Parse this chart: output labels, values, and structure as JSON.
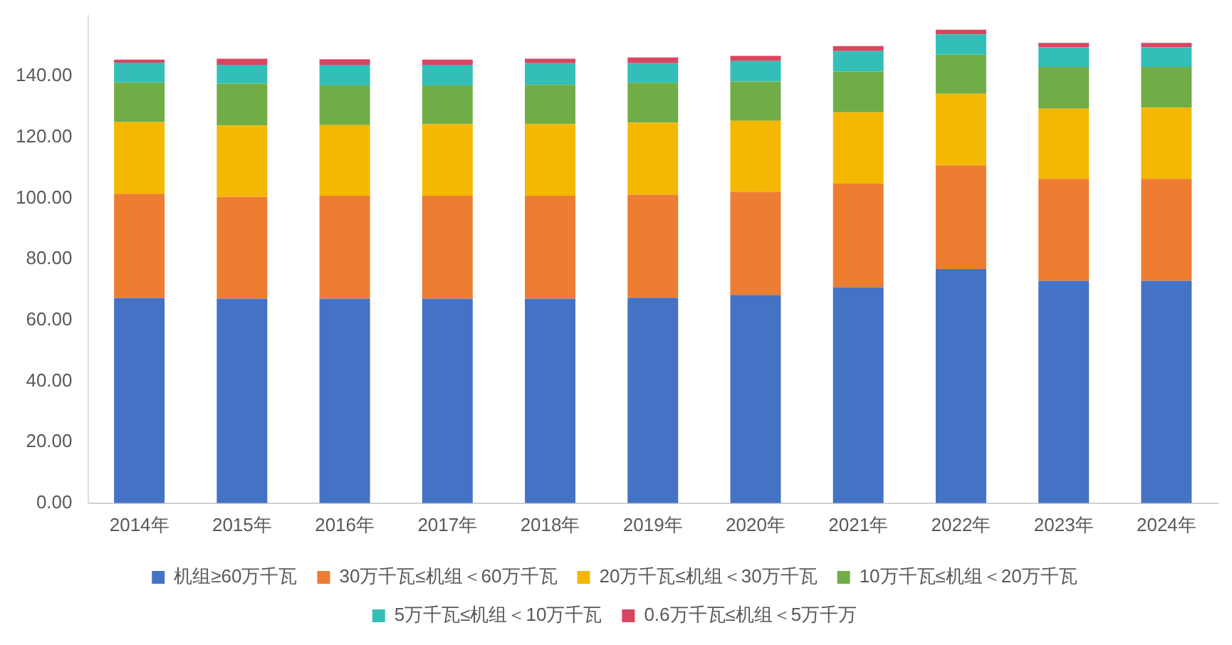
{
  "chart_data": {
    "type": "bar",
    "stacked": true,
    "categories": [
      "2014年",
      "2015年",
      "2016年",
      "2017年",
      "2018年",
      "2019年",
      "2020年",
      "2021年",
      "2022年",
      "2023年",
      "2024年"
    ],
    "series": [
      {
        "name": "机组≥60万千瓦",
        "color": "#4472c4",
        "values": [
          67.3,
          67.1,
          67.1,
          67.1,
          67.1,
          67.4,
          68.3,
          70.8,
          76.8,
          72.9,
          72.9
        ]
      },
      {
        "name": "30万千瓦≤机组＜60万千瓦",
        "color": "#ed7d31",
        "values": [
          34.2,
          33.4,
          33.7,
          33.7,
          33.7,
          33.8,
          33.8,
          34.0,
          34.0,
          33.5,
          33.5
        ]
      },
      {
        "name": "20万千瓦≤机组＜30万千瓦",
        "color": "#f5b800",
        "values": [
          23.5,
          23.4,
          23.2,
          23.5,
          23.5,
          23.6,
          23.3,
          23.4,
          23.5,
          23.0,
          23.3
        ]
      },
      {
        "name": "10万千瓦≤机组＜20万千瓦",
        "color": "#70ad47",
        "values": [
          13.0,
          13.7,
          13.0,
          12.7,
          12.9,
          13.1,
          12.9,
          13.4,
          12.8,
          13.7,
          13.4
        ]
      },
      {
        "name": "5万千瓦≤机组＜10万千瓦",
        "color": "#33bfb8",
        "values": [
          6.5,
          6.2,
          6.8,
          6.8,
          7.1,
          6.4,
          6.7,
          6.7,
          6.7,
          6.4,
          6.4
        ]
      },
      {
        "name": "0.6万千瓦≤机组＜5万千万",
        "color": "#d9455f",
        "values": [
          1.0,
          2.0,
          1.8,
          1.7,
          1.5,
          1.9,
          1.7,
          1.6,
          1.5,
          1.5,
          1.5
        ]
      }
    ],
    "ylim": [
      0,
      160
    ],
    "yticks": [
      {
        "value": 0,
        "label": "0.00"
      },
      {
        "value": 20,
        "label": "20.00"
      },
      {
        "value": 40,
        "label": "40.00"
      },
      {
        "value": 60,
        "label": "60.00"
      },
      {
        "value": 80,
        "label": "80.00"
      },
      {
        "value": 100,
        "label": "100.00"
      },
      {
        "value": 120,
        "label": "120.00"
      },
      {
        "value": 140,
        "label": "140.00"
      }
    ],
    "grid": false,
    "legend": "bottom"
  }
}
